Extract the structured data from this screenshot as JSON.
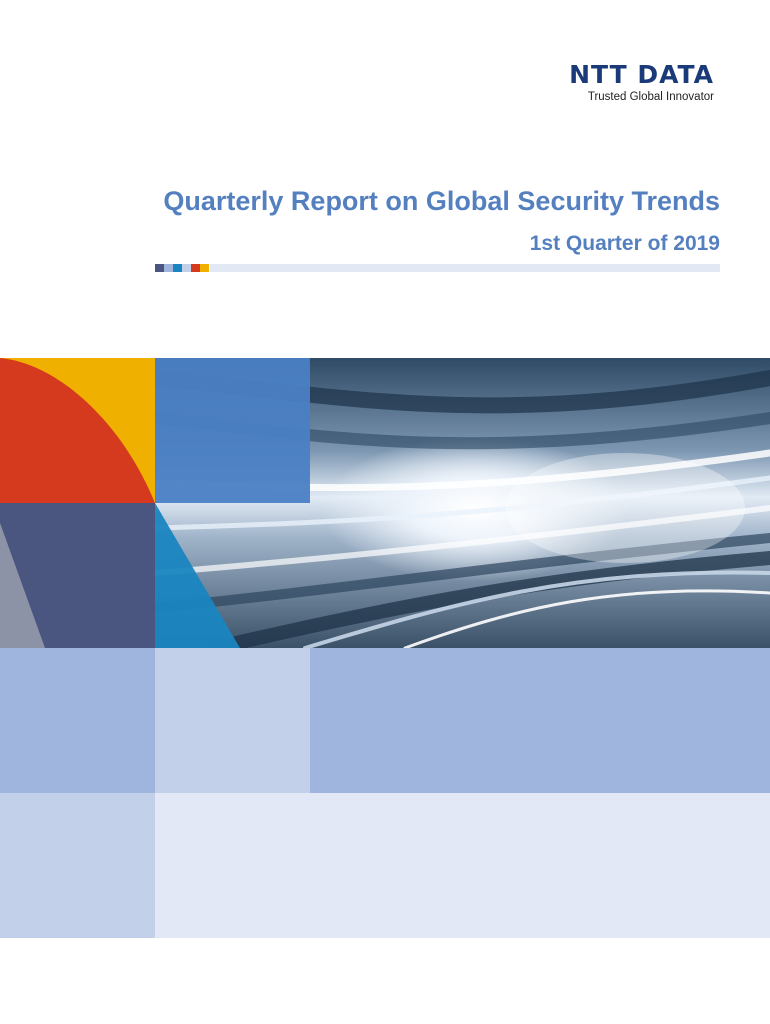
{
  "logo": {
    "brand": "NTT DATA",
    "tagline": "Trusted Global Innovator"
  },
  "report": {
    "title": "Quarterly Report on Global Security Trends",
    "subtitle": "1st Quarter of 2019"
  },
  "colors": {
    "title": "#5580c0",
    "brand_navy": "#1a3a7a",
    "red": "#d63a1e",
    "yellow": "#f0b000",
    "slate_blue": "#4a5580",
    "mid_blue": "#4a80c4",
    "teal_blue": "#1a85c0",
    "lavender": "#a0b5dd",
    "light_lavender": "#c2d0ea",
    "pale_lavender": "#e2e8f5"
  }
}
